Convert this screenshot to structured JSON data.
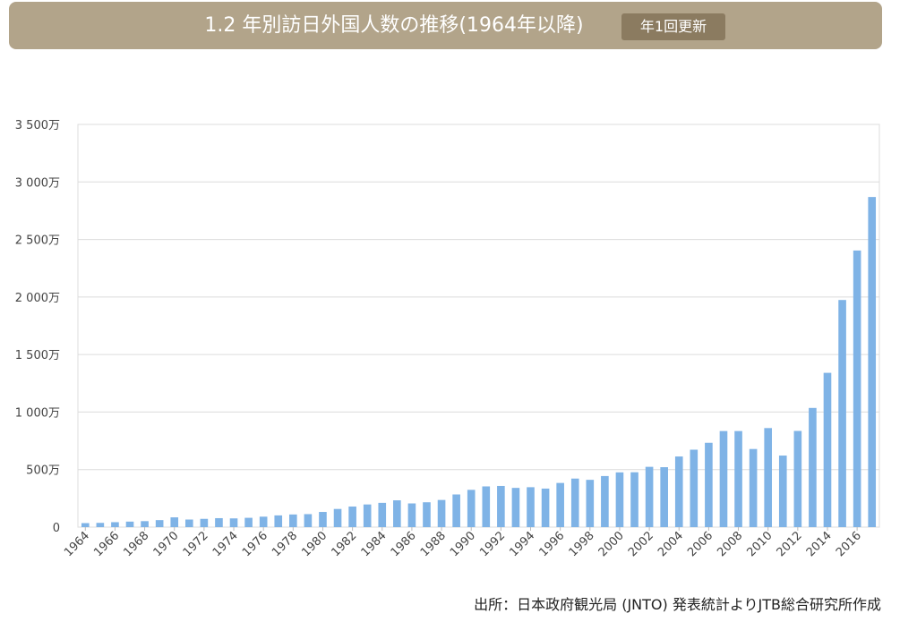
{
  "header": {
    "title": "1.2 年別訪日外国人数の推移(1964年以降)",
    "badge": "年1回更新"
  },
  "footer": {
    "source": "出所：日本政府観光局 (JNTO) 発表統計よりJTB総合研究所作成"
  },
  "colors": {
    "bar": "#7fb3e6",
    "grid": "#dcdcdc",
    "banner": "#b2a48a",
    "badge": "#8b7b60"
  },
  "chart_data": {
    "type": "bar",
    "title": "",
    "xlabel": "",
    "ylabel": "",
    "ylim": [
      0,
      3500
    ],
    "grid": true,
    "y_ticks": [
      {
        "value": 0,
        "label": "0"
      },
      {
        "value": 500,
        "label": "500万"
      },
      {
        "value": 1000,
        "label": "1 000万"
      },
      {
        "value": 1500,
        "label": "1 500万"
      },
      {
        "value": 2000,
        "label": "2 000万"
      },
      {
        "value": 2500,
        "label": "2 500万"
      },
      {
        "value": 3000,
        "label": "3 000万"
      },
      {
        "value": 3500,
        "label": "3 500万"
      }
    ],
    "categories": [
      "1964",
      "1965",
      "1966",
      "1967",
      "1968",
      "1969",
      "1970",
      "1971",
      "1972",
      "1973",
      "1974",
      "1975",
      "1976",
      "1977",
      "1978",
      "1979",
      "1980",
      "1981",
      "1982",
      "1983",
      "1984",
      "1985",
      "1986",
      "1987",
      "1988",
      "1989",
      "1990",
      "1991",
      "1992",
      "1993",
      "1994",
      "1995",
      "1996",
      "1997",
      "1998",
      "1999",
      "2000",
      "2001",
      "2002",
      "2003",
      "2004",
      "2005",
      "2006",
      "2007",
      "2008",
      "2009",
      "2010",
      "2011",
      "2012",
      "2013",
      "2014",
      "2015",
      "2016",
      "2017"
    ],
    "x_tick_labels": [
      "1964",
      "1966",
      "1968",
      "1970",
      "1972",
      "1974",
      "1976",
      "1978",
      "1980",
      "1982",
      "1984",
      "1986",
      "1988",
      "1990",
      "1992",
      "1994",
      "1996",
      "1998",
      "2000",
      "2002",
      "2004",
      "2006",
      "2008",
      "2010",
      "2012",
      "2014",
      "2016"
    ],
    "values": [
      35,
      37,
      43,
      48,
      52,
      61,
      85,
      66,
      72,
      78,
      76,
      81,
      91,
      102,
      110,
      113,
      132,
      158,
      179,
      197,
      211,
      233,
      206,
      216,
      236,
      284,
      324,
      354,
      358,
      341,
      347,
      335,
      384,
      422,
      411,
      444,
      476,
      477,
      524,
      521,
      614,
      673,
      733,
      835,
      835,
      679,
      861,
      622,
      836,
      1036,
      1341,
      1974,
      2404,
      2869
    ]
  }
}
